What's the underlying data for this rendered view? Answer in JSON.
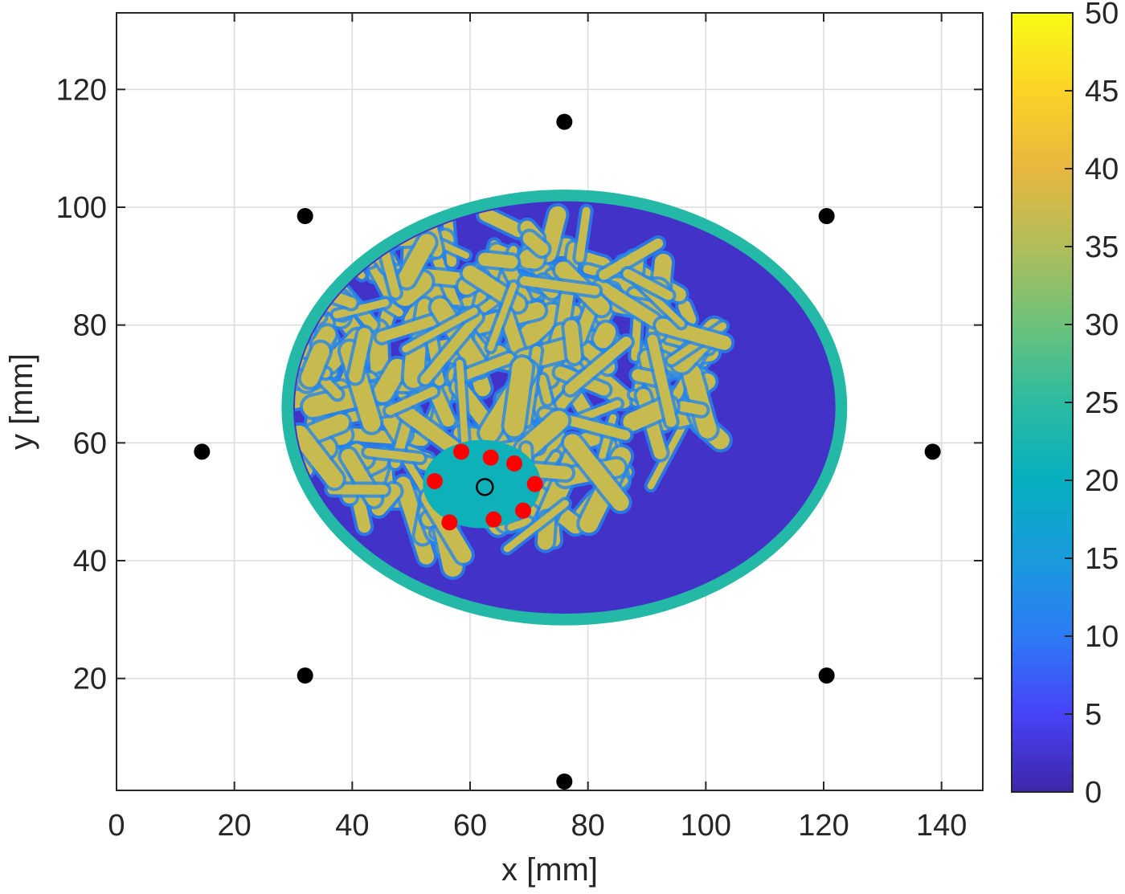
{
  "chart_data": {
    "type": "heatmap",
    "title": "",
    "xlabel": "x [mm]",
    "ylabel": "y [mm]",
    "xlim": [
      0,
      147
    ],
    "ylim": [
      1,
      133
    ],
    "x_ticks": [
      0,
      20,
      40,
      60,
      80,
      100,
      120,
      140
    ],
    "y_ticks": [
      20,
      40,
      60,
      80,
      100,
      120
    ],
    "x_tick_labels": [
      "0",
      "20",
      "40",
      "60",
      "80",
      "100",
      "120",
      "140"
    ],
    "y_tick_labels": [
      "20",
      "40",
      "60",
      "80",
      "100",
      "120"
    ],
    "grid": true,
    "colorbar": {
      "min": 0,
      "max": 50,
      "ticks": [
        0,
        5,
        10,
        15,
        20,
        25,
        30,
        35,
        40,
        45,
        50
      ],
      "tick_labels": [
        "0",
        "5",
        "10",
        "15",
        "20",
        "25",
        "30",
        "35",
        "40",
        "45",
        "50"
      ],
      "colormap": [
        "#3e26a8",
        "#4743f8",
        "#2d7af5",
        "#1a9bdc",
        "#06afc0",
        "#2cbba1",
        "#6cc27a",
        "#b1bd5a",
        "#e7b740",
        "#fbd327",
        "#f9fb15"
      ]
    },
    "phantom": {
      "center": [
        76,
        66
      ],
      "radius_x": 48,
      "radius_y": 37,
      "skin_thickness_mm": 2,
      "background_value": 2,
      "skin_value": 24,
      "tissue_value": 37
    },
    "inclusion": {
      "center": [
        62,
        53
      ],
      "radius_x": 10,
      "radius_y": 7.5,
      "value": 21
    },
    "transducers": {
      "color": "#000000",
      "points": [
        [
          76,
          114.5
        ],
        [
          32,
          98.5
        ],
        [
          120.5,
          98.5
        ],
        [
          14.5,
          58.5
        ],
        [
          138.5,
          58.5
        ],
        [
          32,
          20.5
        ],
        [
          120.5,
          20.5
        ],
        [
          76,
          2.5
        ]
      ]
    },
    "target_points": {
      "color": "#ff0000",
      "points": [
        [
          58.5,
          58.5
        ],
        [
          63.5,
          57.5
        ],
        [
          67.5,
          56.5
        ],
        [
          54,
          53.5
        ],
        [
          71,
          53
        ],
        [
          69,
          48.5
        ],
        [
          56.5,
          46.5
        ],
        [
          64,
          47
        ]
      ]
    },
    "focus_point": [
      62.5,
      52.5
    ]
  }
}
